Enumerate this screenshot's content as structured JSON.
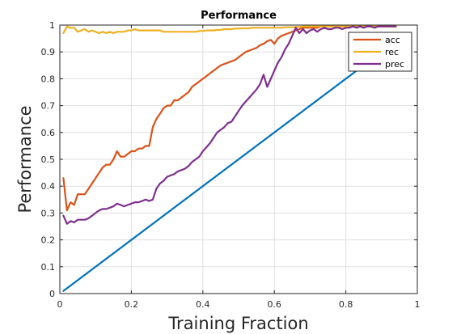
{
  "chart_data": {
    "type": "line",
    "title": "Performance",
    "xlabel": "Training Fraction",
    "ylabel": "Performance",
    "xlim": [
      0,
      1
    ],
    "ylim": [
      0,
      1
    ],
    "xticks": [
      0,
      0.2,
      0.4,
      0.6,
      0.8,
      1
    ],
    "xtick_labels": [
      "0",
      "0.2",
      "0.4",
      "0.6",
      "0.8",
      "1"
    ],
    "yticks": [
      0,
      0.1,
      0.2,
      0.3,
      0.4,
      0.5,
      0.6,
      0.7,
      0.8,
      0.9,
      1
    ],
    "ytick_labels": [
      "0",
      "0.1",
      "0.2",
      "0.3",
      "0.4",
      "0.5",
      "0.6",
      "0.7",
      "0.8",
      "0.9",
      "1"
    ],
    "grid": true,
    "legend_position": "top-right",
    "series": [
      {
        "color": "#0072BD",
        "in_legend": false,
        "x": [
          0.01,
          0.94
        ],
        "y": [
          0.01,
          0.94
        ]
      },
      {
        "name": "acc",
        "color": "#D95319",
        "in_legend": true,
        "x": [
          0.01,
          0.02,
          0.03,
          0.04,
          0.05,
          0.06,
          0.07,
          0.08,
          0.09,
          0.1,
          0.11,
          0.12,
          0.13,
          0.14,
          0.15,
          0.16,
          0.17,
          0.18,
          0.19,
          0.2,
          0.21,
          0.22,
          0.23,
          0.24,
          0.25,
          0.26,
          0.27,
          0.28,
          0.29,
          0.3,
          0.31,
          0.32,
          0.33,
          0.34,
          0.35,
          0.36,
          0.37,
          0.38,
          0.39,
          0.4,
          0.41,
          0.42,
          0.43,
          0.44,
          0.45,
          0.46,
          0.47,
          0.48,
          0.49,
          0.5,
          0.51,
          0.52,
          0.53,
          0.54,
          0.55,
          0.56,
          0.57,
          0.58,
          0.59,
          0.6,
          0.61,
          0.62,
          0.63,
          0.64,
          0.65,
          0.66,
          0.67,
          0.68,
          0.69,
          0.7,
          0.71,
          0.72,
          0.73,
          0.74,
          0.75,
          0.76,
          0.77,
          0.78,
          0.79,
          0.8,
          0.81,
          0.82,
          0.83,
          0.84,
          0.85,
          0.86,
          0.87,
          0.88,
          0.89,
          0.9,
          0.91,
          0.92,
          0.93,
          0.94
        ],
        "y": [
          0.43,
          0.31,
          0.34,
          0.33,
          0.37,
          0.37,
          0.37,
          0.39,
          0.41,
          0.43,
          0.45,
          0.47,
          0.48,
          0.48,
          0.5,
          0.53,
          0.51,
          0.51,
          0.52,
          0.53,
          0.53,
          0.54,
          0.54,
          0.55,
          0.55,
          0.62,
          0.65,
          0.67,
          0.69,
          0.7,
          0.7,
          0.72,
          0.72,
          0.73,
          0.74,
          0.75,
          0.77,
          0.78,
          0.79,
          0.8,
          0.81,
          0.82,
          0.83,
          0.84,
          0.85,
          0.855,
          0.86,
          0.865,
          0.87,
          0.88,
          0.89,
          0.9,
          0.905,
          0.91,
          0.915,
          0.925,
          0.93,
          0.94,
          0.945,
          0.93,
          0.95,
          0.96,
          0.965,
          0.97,
          0.975,
          0.98,
          0.985,
          0.99,
          0.99,
          0.99,
          0.99,
          0.99,
          0.995,
          0.995,
          0.995,
          0.995,
          0.995,
          0.995,
          0.995,
          0.995,
          0.995,
          0.995,
          0.995,
          0.995,
          0.995,
          0.995,
          0.995,
          0.995,
          0.995,
          0.995,
          0.995,
          0.995,
          0.995,
          0.995
        ]
      },
      {
        "name": "rec",
        "color": "#EDB120",
        "in_legend": true,
        "x": [
          0.01,
          0.02,
          0.03,
          0.04,
          0.05,
          0.06,
          0.07,
          0.08,
          0.09,
          0.1,
          0.11,
          0.12,
          0.13,
          0.14,
          0.15,
          0.16,
          0.17,
          0.18,
          0.19,
          0.2,
          0.21,
          0.22,
          0.23,
          0.24,
          0.25,
          0.26,
          0.27,
          0.28,
          0.29,
          0.3,
          0.31,
          0.32,
          0.33,
          0.34,
          0.35,
          0.36,
          0.37,
          0.38,
          0.39,
          0.4,
          0.41,
          0.42,
          0.43,
          0.44,
          0.45,
          0.46,
          0.47,
          0.48,
          0.49,
          0.5,
          0.51,
          0.52,
          0.53,
          0.54,
          0.55,
          0.56,
          0.57,
          0.58,
          0.59,
          0.6,
          0.61,
          0.62,
          0.63,
          0.64,
          0.65,
          0.66,
          0.67,
          0.68,
          0.69,
          0.7,
          0.71,
          0.72,
          0.73,
          0.74,
          0.75,
          0.76,
          0.77,
          0.78,
          0.79,
          0.8,
          0.81,
          0.82,
          0.83,
          0.84,
          0.85,
          0.86,
          0.87,
          0.88,
          0.89,
          0.9,
          0.91,
          0.92,
          0.93,
          0.94
        ],
        "y": [
          0.97,
          0.995,
          0.99,
          0.99,
          0.975,
          0.98,
          0.985,
          0.975,
          0.98,
          0.975,
          0.97,
          0.975,
          0.97,
          0.975,
          0.97,
          0.975,
          0.975,
          0.975,
          0.98,
          0.98,
          0.985,
          0.98,
          0.98,
          0.98,
          0.98,
          0.98,
          0.98,
          0.98,
          0.975,
          0.975,
          0.975,
          0.975,
          0.975,
          0.975,
          0.975,
          0.975,
          0.975,
          0.975,
          0.978,
          0.978,
          0.98,
          0.98,
          0.98,
          0.982,
          0.982,
          0.985,
          0.985,
          0.985,
          0.987,
          0.987,
          0.988,
          0.988,
          0.988,
          0.99,
          0.99,
          0.99,
          0.99,
          0.99,
          0.99,
          0.99,
          0.99,
          0.99,
          0.992,
          0.992,
          0.992,
          0.993,
          0.993,
          0.995,
          0.995,
          0.995,
          0.995,
          0.995,
          0.995,
          0.995,
          0.995,
          0.995,
          0.995,
          0.995,
          0.995,
          0.995,
          0.995,
          0.995,
          0.995,
          0.995,
          0.995,
          0.995,
          0.995,
          0.995,
          0.995,
          0.995,
          0.995,
          0.995,
          0.995,
          0.995
        ]
      },
      {
        "name": "prec",
        "color": "#7E2F8E",
        "in_legend": true,
        "x": [
          0.01,
          0.02,
          0.03,
          0.04,
          0.05,
          0.06,
          0.07,
          0.08,
          0.09,
          0.1,
          0.11,
          0.12,
          0.13,
          0.14,
          0.15,
          0.16,
          0.17,
          0.18,
          0.19,
          0.2,
          0.21,
          0.22,
          0.23,
          0.24,
          0.25,
          0.26,
          0.27,
          0.28,
          0.29,
          0.3,
          0.31,
          0.32,
          0.33,
          0.34,
          0.35,
          0.36,
          0.37,
          0.38,
          0.39,
          0.4,
          0.41,
          0.42,
          0.43,
          0.44,
          0.45,
          0.46,
          0.47,
          0.48,
          0.49,
          0.5,
          0.51,
          0.52,
          0.53,
          0.54,
          0.55,
          0.56,
          0.57,
          0.58,
          0.59,
          0.6,
          0.61,
          0.62,
          0.63,
          0.64,
          0.65,
          0.66,
          0.67,
          0.68,
          0.69,
          0.7,
          0.71,
          0.72,
          0.73,
          0.74,
          0.75,
          0.76,
          0.77,
          0.78,
          0.79,
          0.8,
          0.81,
          0.82,
          0.83,
          0.84,
          0.85,
          0.86,
          0.87,
          0.88,
          0.89,
          0.9,
          0.91,
          0.92,
          0.93,
          0.94
        ],
        "y": [
          0.29,
          0.26,
          0.27,
          0.265,
          0.275,
          0.275,
          0.275,
          0.28,
          0.29,
          0.3,
          0.31,
          0.315,
          0.315,
          0.32,
          0.325,
          0.335,
          0.33,
          0.325,
          0.33,
          0.335,
          0.34,
          0.34,
          0.345,
          0.35,
          0.345,
          0.35,
          0.39,
          0.41,
          0.42,
          0.435,
          0.44,
          0.445,
          0.455,
          0.46,
          0.465,
          0.475,
          0.49,
          0.5,
          0.51,
          0.53,
          0.545,
          0.56,
          0.58,
          0.6,
          0.61,
          0.62,
          0.635,
          0.64,
          0.66,
          0.68,
          0.7,
          0.715,
          0.73,
          0.745,
          0.76,
          0.78,
          0.815,
          0.77,
          0.8,
          0.83,
          0.86,
          0.88,
          0.91,
          0.93,
          0.96,
          0.99,
          0.97,
          0.985,
          0.97,
          0.98,
          0.985,
          0.975,
          0.985,
          0.99,
          0.985,
          0.985,
          0.99,
          0.99,
          0.985,
          0.99,
          0.99,
          0.995,
          0.99,
          0.995,
          0.99,
          0.995,
          0.995,
          0.99,
          0.995,
          0.995,
          0.995,
          0.995,
          0.995,
          0.995
        ]
      }
    ]
  }
}
